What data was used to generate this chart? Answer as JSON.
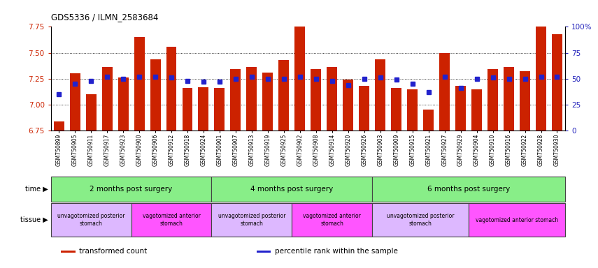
{
  "title": "GDS5336 / ILMN_2583684",
  "samples": [
    "GSM750899",
    "GSM750905",
    "GSM750911",
    "GSM750917",
    "GSM750923",
    "GSM750900",
    "GSM750906",
    "GSM750912",
    "GSM750918",
    "GSM750924",
    "GSM750901",
    "GSM750907",
    "GSM750913",
    "GSM750919",
    "GSM750925",
    "GSM750902",
    "GSM750908",
    "GSM750914",
    "GSM750920",
    "GSM750926",
    "GSM750903",
    "GSM750909",
    "GSM750915",
    "GSM750921",
    "GSM750927",
    "GSM750929",
    "GSM750904",
    "GSM750910",
    "GSM750916",
    "GSM750922",
    "GSM750928",
    "GSM750930"
  ],
  "bar_values": [
    6.84,
    7.3,
    7.1,
    7.36,
    7.26,
    7.65,
    7.44,
    7.56,
    7.16,
    7.17,
    7.16,
    7.34,
    7.36,
    7.31,
    7.43,
    7.8,
    7.34,
    7.36,
    7.24,
    7.18,
    7.44,
    7.16,
    7.15,
    6.95,
    7.5,
    7.18,
    7.15,
    7.34,
    7.36,
    7.32,
    7.85,
    7.68
  ],
  "percentile_values": [
    35,
    45,
    48,
    52,
    50,
    52,
    52,
    51,
    48,
    47,
    47,
    50,
    52,
    50,
    50,
    52,
    50,
    48,
    44,
    50,
    51,
    49,
    45,
    37,
    52,
    41,
    50,
    51,
    50,
    50,
    52,
    52
  ],
  "bar_color": "#CC2200",
  "marker_color": "#2222CC",
  "ylim_left": [
    6.75,
    7.75
  ],
  "ylim_right": [
    0,
    100
  ],
  "yticks_left": [
    6.75,
    7.0,
    7.25,
    7.5,
    7.75
  ],
  "yticks_right": [
    0,
    25,
    50,
    75,
    100
  ],
  "grid_values": [
    7.0,
    7.25,
    7.5
  ],
  "time_groups": [
    {
      "label": "2 months post surgery",
      "start": 0,
      "end": 10
    },
    {
      "label": "4 months post surgery",
      "start": 10,
      "end": 20
    },
    {
      "label": "6 months post surgery",
      "start": 20,
      "end": 32
    }
  ],
  "time_color": "#88EE88",
  "tissue_groups": [
    {
      "label": "unvagotomized posterior\nstomach",
      "start": 0,
      "end": 5,
      "color": "#DDB8FF"
    },
    {
      "label": "vagotomized anterior\nstomach",
      "start": 5,
      "end": 10,
      "color": "#FF55FF"
    },
    {
      "label": "unvagotomized posterior\nstomach",
      "start": 10,
      "end": 15,
      "color": "#DDB8FF"
    },
    {
      "label": "vagotomized anterior\nstomach",
      "start": 15,
      "end": 20,
      "color": "#FF55FF"
    },
    {
      "label": "unvagotomized posterior\nstomach",
      "start": 20,
      "end": 26,
      "color": "#DDB8FF"
    },
    {
      "label": "vagotomized anterior stomach",
      "start": 26,
      "end": 32,
      "color": "#FF55FF"
    }
  ],
  "legend_items": [
    {
      "label": "transformed count",
      "color": "#CC2200"
    },
    {
      "label": "percentile rank within the sample",
      "color": "#2222CC"
    }
  ],
  "bg_color": "#FFFFFF",
  "left_axis_color": "#CC2200",
  "right_axis_color": "#2222BB",
  "bar_width": 0.65
}
